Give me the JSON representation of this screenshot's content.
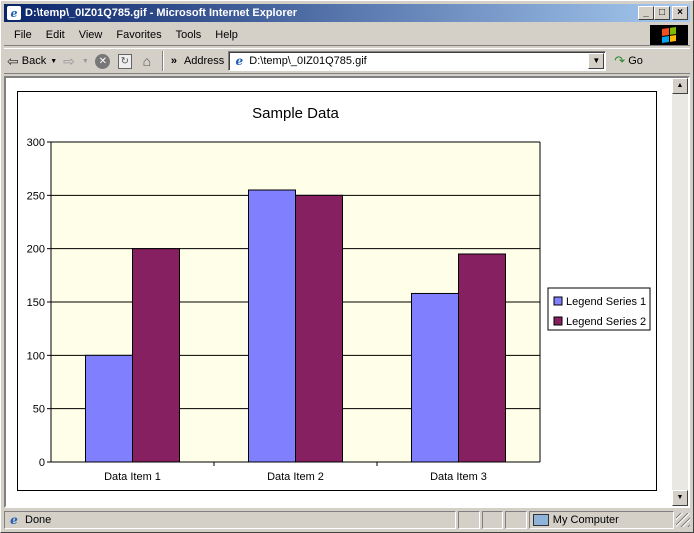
{
  "window": {
    "title": "D:\\temp\\_0IZ01Q785.gif - Microsoft Internet Explorer",
    "controls": {
      "minimize": "_",
      "maximize": "□",
      "close": "×"
    }
  },
  "menu": {
    "items": [
      "File",
      "Edit",
      "View",
      "Favorites",
      "Tools",
      "Help"
    ]
  },
  "toolbar": {
    "back_label": "Back",
    "more_label": "»",
    "address_label": "Address",
    "address_value": "D:\\temp\\_0IZ01Q785.gif",
    "go_label": "Go"
  },
  "status": {
    "text": "Done",
    "zone": "My Computer"
  },
  "icons": {
    "back": "arrow-left-icon",
    "forward": "arrow-right-icon",
    "stop": "stop-icon",
    "refresh": "refresh-icon",
    "home": "home-icon",
    "go": "go-arrow-icon"
  },
  "chart_data": {
    "type": "bar",
    "title": "Sample Data",
    "categories": [
      "Data Item 1",
      "Data Item 2",
      "Data Item 3"
    ],
    "series": [
      {
        "name": "Legend Series 1",
        "values": [
          100,
          255,
          158
        ],
        "color": "#8080ff"
      },
      {
        "name": "Legend Series 2",
        "values": [
          200,
          250,
          195
        ],
        "color": "#862060"
      }
    ],
    "ylim": [
      0,
      300
    ],
    "yticks": [
      0,
      50,
      100,
      150,
      200,
      250,
      300
    ],
    "grid": true,
    "plot_background": "#fffee8",
    "legend_position": "right"
  }
}
